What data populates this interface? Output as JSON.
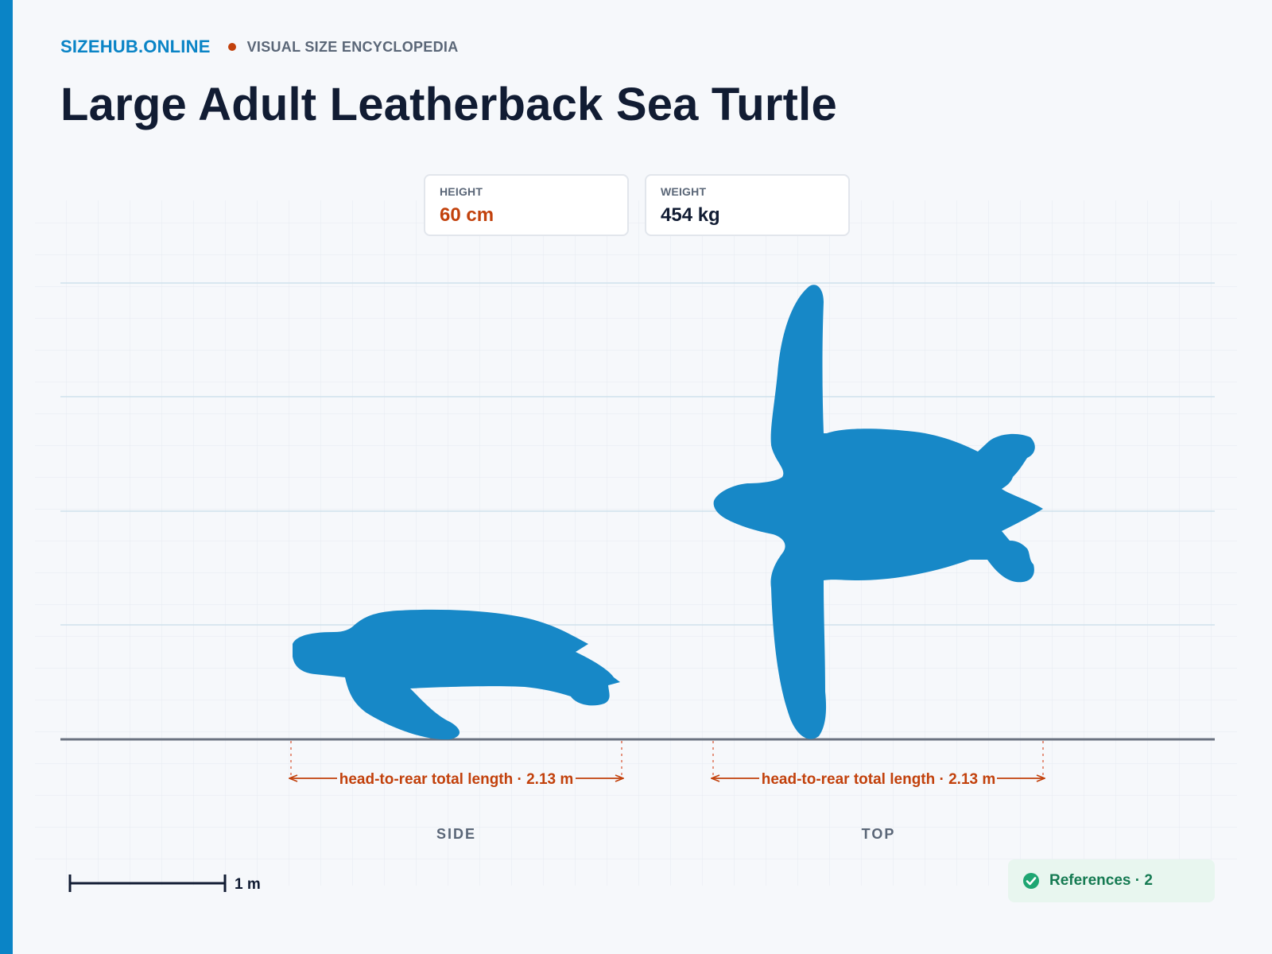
{
  "brand": {
    "name": "SIZEHUB.ONLINE",
    "tagline": "VISUAL SIZE ENCYCLOPEDIA"
  },
  "page_title": "Large Adult Leatherback Sea Turtle",
  "stats": {
    "height_label": "HEIGHT",
    "height_value": "60 cm",
    "weight_label": "WEIGHT",
    "weight_value": "454 kg"
  },
  "views": [
    {
      "label": "SIDE",
      "measure": "head-to-rear total length · 2.13 m"
    },
    {
      "label": "TOP",
      "measure": "head-to-rear total length · 2.13 m"
    }
  ],
  "scale_bar": {
    "label": "1 m"
  },
  "references": {
    "label": "References · 2"
  },
  "colors": {
    "accent": "#0a84c6",
    "silhouette": "#1788c7",
    "measure": "#c2410c",
    "title": "#111c33",
    "references_text": "#157a52",
    "references_bg": "#e8f6ef"
  },
  "icons": [
    "check-circle-icon"
  ]
}
